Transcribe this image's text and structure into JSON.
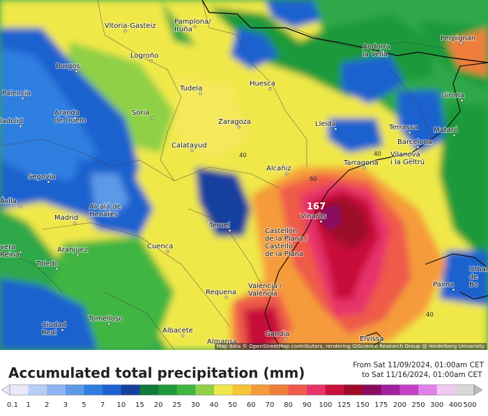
{
  "map": {
    "cities": [
      {
        "name": "Vitoria-Gasteiz",
        "lines": [
          "Vitoria-Gasteiz"
        ]
      },
      {
        "name": "Pamplona/Iruña",
        "lines": [
          "Pamplona/",
          "Iruña"
        ]
      },
      {
        "name": "Andorra la Vella",
        "lines": [
          "Andorra",
          "la Vella"
        ]
      },
      {
        "name": "Perpignan",
        "lines": [
          "Perpignan"
        ]
      },
      {
        "name": "Logroño",
        "lines": [
          "Logroño"
        ]
      },
      {
        "name": "Burgos",
        "lines": [
          "Burgos"
        ]
      },
      {
        "name": "Palencia",
        "lines": [
          "Palencia"
        ]
      },
      {
        "name": "Tudela",
        "lines": [
          "Tudela"
        ]
      },
      {
        "name": "Huesca",
        "lines": [
          "Huesca"
        ]
      },
      {
        "name": "Girona",
        "lines": [
          "Girona"
        ]
      },
      {
        "name": "Aranda de Duero",
        "lines": [
          "Aranda",
          "de Duero"
        ]
      },
      {
        "name": "Soria",
        "lines": [
          "Soria"
        ]
      },
      {
        "name": "Zaragoza",
        "lines": [
          "Zaragoza"
        ]
      },
      {
        "name": "Lleida",
        "lines": [
          "Lleida"
        ]
      },
      {
        "name": "Terrassa",
        "lines": [
          "Terrassa"
        ]
      },
      {
        "name": "Mataró",
        "lines": [
          "Mataró"
        ]
      },
      {
        "name": "Barcelona",
        "lines": [
          "Barcelona"
        ]
      },
      {
        "name": "Valladolid",
        "lines": [
          "ladolid"
        ]
      },
      {
        "name": "Calatayud",
        "lines": [
          "Calatayud"
        ]
      },
      {
        "name": "Vilanova i la Geltrú",
        "lines": [
          "Vilanova",
          "i la Geltrú"
        ]
      },
      {
        "name": "Tarragona",
        "lines": [
          "Tarragona"
        ]
      },
      {
        "name": "Segovia",
        "lines": [
          "Segovia"
        ]
      },
      {
        "name": "Alcañiz",
        "lines": [
          "Alcañiz"
        ]
      },
      {
        "name": "Ávila",
        "lines": [
          "Ávila"
        ]
      },
      {
        "name": "Alcalá de Henares",
        "lines": [
          "Alcalá de",
          "Henares"
        ]
      },
      {
        "name": "Madrid",
        "lines": [
          "Madrid"
        ]
      },
      {
        "name": "Vinaròs",
        "lines": [
          "Vinaròs"
        ]
      },
      {
        "name": "Teruel",
        "lines": [
          "Teruel"
        ]
      },
      {
        "name": "Castellón de la Plana / Castelló de la Plana",
        "lines": [
          "Castellón",
          "de la Plana /",
          "Castelló",
          "de la Plana"
        ]
      },
      {
        "name": "Aranjuez",
        "lines": [
          "Aranjuez"
        ]
      },
      {
        "name": "Cuenca",
        "lines": [
          "Cuenca"
        ]
      },
      {
        "name": "Talavera de la Reina",
        "lines": [
          "vera",
          "Reina"
        ]
      },
      {
        "name": "Toledo",
        "lines": [
          "Toledo"
        ]
      },
      {
        "name": "Urbanització de Bonanova",
        "lines": [
          "Urban",
          "de",
          "Bo"
        ]
      },
      {
        "name": "Palma",
        "lines": [
          "Palma"
        ]
      },
      {
        "name": "Requena",
        "lines": [
          "Requena"
        ]
      },
      {
        "name": "Valencia / València",
        "lines": [
          "Valencia /",
          "València"
        ]
      },
      {
        "name": "Tomelloso",
        "lines": [
          "Tomelloso"
        ]
      },
      {
        "name": "Ciudad Real",
        "lines": [
          "Ciudad",
          "Real"
        ]
      },
      {
        "name": "Albacete",
        "lines": [
          "Albacete"
        ]
      },
      {
        "name": "Gandia",
        "lines": [
          "Gandia"
        ]
      },
      {
        "name": "Almansa",
        "lines": [
          "Almansa"
        ]
      },
      {
        "name": "Eivissa",
        "lines": [
          "Eivissa"
        ]
      }
    ],
    "contour_labels": [
      "40",
      "60",
      "40",
      "40"
    ],
    "max_value": "167",
    "attribution": "Map data © OpenStreetMap contributors, rendering GIScience Research Group @ Heidelberg University"
  },
  "legend": {
    "title": "Accumulated total precipitation (mm)",
    "time_from": "From Sat 11/09/2024, 01:00am CET",
    "time_to": "to Sat 11/16/2024, 01:00am CET",
    "levels": [
      "0.1",
      "1",
      "2",
      "3",
      "5",
      "7",
      "10",
      "15",
      "20",
      "25",
      "30",
      "40",
      "50",
      "60",
      "70",
      "80",
      "90",
      "100",
      "125",
      "150",
      "175",
      "200",
      "250",
      "300",
      "400",
      "500"
    ],
    "colors": [
      "#e8e8f8",
      "#b8cdf5",
      "#8fb4f2",
      "#5c9ae8",
      "#2f7fe0",
      "#1d62cf",
      "#163f9e",
      "#0f7a3a",
      "#1f9a3a",
      "#3fb542",
      "#8fd046",
      "#f0e84a",
      "#f5c438",
      "#f59b3a",
      "#f07e3a",
      "#ef5a4a",
      "#e7336a",
      "#c8103a",
      "#9e0a2a",
      "#8a0a60",
      "#a020a0",
      "#c640c6",
      "#e080e8",
      "#f0c8f2",
      "#d8d8d8",
      "#bdbdbd"
    ]
  }
}
